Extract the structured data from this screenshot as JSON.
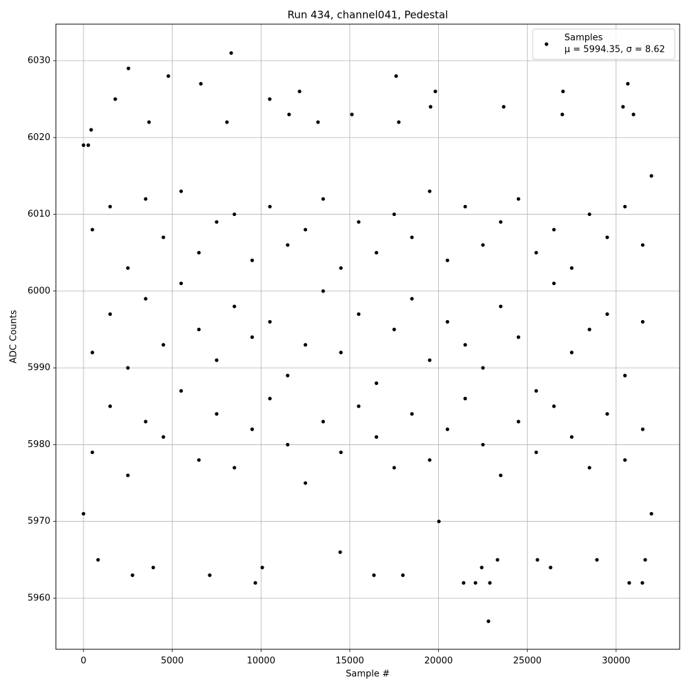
{
  "chart_data": {
    "type": "scatter",
    "title": "Run 434, channel041, Pedestal",
    "x_label": "Sample #",
    "y_label": "ADC Counts",
    "xlim": [
      -1555,
      33580
    ],
    "ylim": [
      5953.35,
      6034.76
    ],
    "xticks": [
      0,
      5000,
      10000,
      15000,
      20000,
      25000,
      30000
    ],
    "yticks": [
      5960,
      5970,
      5980,
      5990,
      6000,
      6010,
      6020,
      6030
    ],
    "grid": true,
    "legend_position": "upper right",
    "legend_note": "μ = 5994.35, σ = 8.62",
    "series": [
      {
        "name": "Samples",
        "color": "#000000",
        "x": [
          0,
          270,
          430,
          1790,
          2530,
          3690,
          4780,
          6610,
          8080,
          8320,
          10490,
          11580,
          12170,
          13210,
          15120,
          17610,
          17760,
          19550,
          19820,
          23670,
          26970,
          27010,
          30390,
          30660,
          30980,
          31990,
          0,
          820,
          2760,
          3930,
          7110,
          9680,
          10070,
          14460,
          16360,
          17990,
          20020,
          21410,
          22080,
          22430,
          22810,
          22890,
          23320,
          25570,
          26310,
          28920,
          30740,
          31480,
          31640,
          31990,
          500,
          500,
          500,
          1500,
          1500,
          1500,
          2500,
          2500,
          2500,
          3500,
          3500,
          3500,
          4500,
          4500,
          4500,
          5500,
          5500,
          5500,
          6500,
          6500,
          6500,
          7500,
          7500,
          7500,
          8500,
          8500,
          8500,
          9500,
          9500,
          9500,
          10500,
          10500,
          10500,
          11500,
          11500,
          11500,
          12500,
          12500,
          12500,
          13500,
          13500,
          13500,
          14500,
          14500,
          14500,
          15500,
          15500,
          15500,
          16500,
          16500,
          16500,
          17500,
          17500,
          17500,
          18500,
          18500,
          18500,
          19500,
          19500,
          19500,
          20500,
          20500,
          20500,
          21500,
          21500,
          21500,
          22500,
          22500,
          22500,
          23500,
          23500,
          23500,
          24500,
          24500,
          24500,
          25500,
          25500,
          25500,
          26500,
          26500,
          26500,
          27500,
          27500,
          27500,
          28500,
          28500,
          28500,
          29500,
          29500,
          29500,
          30500,
          30500,
          30500,
          31500,
          31500,
          31500
        ],
        "y": [
          6019,
          6019,
          6021,
          6025,
          6029,
          6022,
          6028,
          6027,
          6022,
          6031,
          6025,
          6023,
          6026,
          6022,
          6023,
          6028,
          6022,
          6024,
          6026,
          6024,
          6023,
          6026,
          6024,
          6027,
          6023,
          6015,
          5971,
          5965,
          5963,
          5964,
          5963,
          5962,
          5964,
          5966,
          5963,
          5963,
          5970,
          5962,
          5962,
          5964,
          5957,
          5962,
          5965,
          5965,
          5964,
          5965,
          5962,
          5962,
          5965,
          5971,
          5979,
          5992,
          6008,
          5985,
          5997,
          6011,
          5976,
          5990,
          6003,
          5983,
          5999,
          6012,
          5981,
          5993,
          6007,
          5987,
          6001,
          6013,
          5978,
          5995,
          6005,
          5984,
          5991,
          6009,
          5977,
          5998,
          6010,
          5982,
          5994,
          6004,
          5986,
          5996,
          6011,
          5980,
          5989,
          6006,
          5975,
          5993,
          6008,
          5983,
          6000,
          6012,
          5979,
          5992,
          6003,
          5985,
          5997,
          6009,
          5981,
          5988,
          6005,
          5977,
          5995,
          6010,
          5984,
          5999,
          6007,
          5978,
          5991,
          6013,
          5982,
          5996,
          6004,
          5986,
          5993,
          6011,
          5980,
          5990,
          6006,
          5976,
          5998,
          6009,
          5983,
          5994,
          6012,
          5979,
          5987,
          6005,
          5985,
          6001,
          6008,
          5981,
          5992,
          6003,
          5977,
          5995,
          6010,
          5984,
          5997,
          6007,
          5978,
          5989,
          6011,
          5982,
          5996,
          6006
        ]
      }
    ]
  }
}
